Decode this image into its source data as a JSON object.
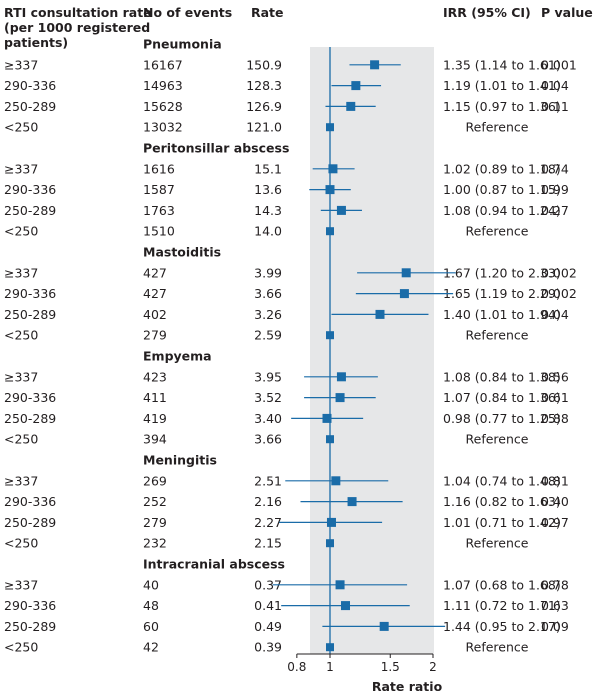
{
  "header": {
    "col_category_line1": "RTI consultation rate",
    "col_category_line2": "(per 1000 registered",
    "col_category_line3": "patients)",
    "col_events": "No of events",
    "col_rate": "Rate",
    "col_irr": "IRR (95% CI)",
    "col_pvalue": "P value"
  },
  "colors": {
    "marker": "#1a6ca8",
    "panel": "#e6e7e8",
    "text": "#231f20"
  },
  "chart_data": {
    "type": "forest",
    "xlabel": "Rate ratio",
    "x_scale": "log",
    "xlim": [
      0.8,
      2
    ],
    "xticks": [
      0.8,
      1,
      1.5,
      2
    ],
    "xtick_labels": [
      "0.8",
      "1",
      "1.5",
      "2"
    ],
    "reference_line": 1,
    "groups": [
      {
        "name": "Pneumonia",
        "rows": [
          {
            "category": "≥337",
            "events": "16167",
            "rate": "150.9",
            "irr": 1.35,
            "lo": 1.14,
            "hi": 1.61,
            "irr_text": "1.35 (1.14 to 1.61)",
            "p": "0.001"
          },
          {
            "category": "290-336",
            "events": "14963",
            "rate": "128.3",
            "irr": 1.19,
            "lo": 1.01,
            "hi": 1.41,
            "irr_text": "1.19 (1.01 to 1.41)",
            "p": "0.04"
          },
          {
            "category": "250-289",
            "events": "15628",
            "rate": "126.9",
            "irr": 1.15,
            "lo": 0.97,
            "hi": 1.36,
            "irr_text": "1.15 (0.97 to 1.36)",
            "p": "0.11"
          },
          {
            "category": "<250",
            "events": "13032",
            "rate": "121.0",
            "irr": 1,
            "lo": null,
            "hi": null,
            "irr_text": "Reference",
            "p": ""
          }
        ]
      },
      {
        "name": "Peritonsillar abscess",
        "rows": [
          {
            "category": "≥337",
            "events": "1616",
            "rate": "15.1",
            "irr": 1.02,
            "lo": 0.89,
            "hi": 1.18,
            "irr_text": "1.02 (0.89 to 1.18)",
            "p": "0.74"
          },
          {
            "category": "290-336",
            "events": "1587",
            "rate": "13.6",
            "irr": 1.0,
            "lo": 0.87,
            "hi": 1.15,
            "irr_text": "1.00 (0.87 to 1.15)",
            "p": "0.99"
          },
          {
            "category": "250-289",
            "events": "1763",
            "rate": "14.3",
            "irr": 1.08,
            "lo": 0.94,
            "hi": 1.24,
            "irr_text": "1.08 (0.94 to 1.24)",
            "p": "0.27"
          },
          {
            "category": "<250",
            "events": "1510",
            "rate": "14.0",
            "irr": 1,
            "lo": null,
            "hi": null,
            "irr_text": "Reference",
            "p": ""
          }
        ]
      },
      {
        "name": "Mastoiditis",
        "rows": [
          {
            "category": "≥337",
            "events": "427",
            "rate": "3.99",
            "irr": 1.67,
            "lo": 1.2,
            "hi": 2.33,
            "irr_text": "1.67 (1.20 to 2.33)",
            "p": "0.002"
          },
          {
            "category": "290-336",
            "events": "427",
            "rate": "3.66",
            "irr": 1.65,
            "lo": 1.19,
            "hi": 2.29,
            "irr_text": "1.65 (1.19 to 2.29)",
            "p": "0.002"
          },
          {
            "category": "250-289",
            "events": "402",
            "rate": "3.26",
            "irr": 1.4,
            "lo": 1.01,
            "hi": 1.94,
            "irr_text": "1.40 (1.01 to 1.94)",
            "p": "0.04"
          },
          {
            "category": "<250",
            "events": "279",
            "rate": "2.59",
            "irr": 1,
            "lo": null,
            "hi": null,
            "irr_text": "Reference",
            "p": ""
          }
        ]
      },
      {
        "name": "Empyema",
        "rows": [
          {
            "category": "≥337",
            "events": "423",
            "rate": "3.95",
            "irr": 1.08,
            "lo": 0.84,
            "hi": 1.38,
            "irr_text": "1.08 (0.84 to 1.38)",
            "p": "0.56"
          },
          {
            "category": "290-336",
            "events": "411",
            "rate": "3.52",
            "irr": 1.07,
            "lo": 0.84,
            "hi": 1.36,
            "irr_text": "1.07 (0.84 to 1.36)",
            "p": "0.61"
          },
          {
            "category": "250-289",
            "events": "419",
            "rate": "3.40",
            "irr": 0.98,
            "lo": 0.77,
            "hi": 1.25,
            "irr_text": "0.98 (0.77 to 1.25)",
            "p": "0.88"
          },
          {
            "category": "<250",
            "events": "394",
            "rate": "3.66",
            "irr": 1,
            "lo": null,
            "hi": null,
            "irr_text": "Reference",
            "p": ""
          }
        ]
      },
      {
        "name": "Meningitis",
        "rows": [
          {
            "category": "≥337",
            "events": "269",
            "rate": "2.51",
            "irr": 1.04,
            "lo": 0.74,
            "hi": 1.48,
            "irr_text": "1.04 (0.74 to 1.48)",
            "p": "0.81"
          },
          {
            "category": "290-336",
            "events": "252",
            "rate": "2.16",
            "irr": 1.16,
            "lo": 0.82,
            "hi": 1.63,
            "irr_text": "1.16 (0.82 to 1.63)",
            "p": "0.40"
          },
          {
            "category": "250-289",
            "events": "279",
            "rate": "2.27",
            "irr": 1.01,
            "lo": 0.71,
            "hi": 1.42,
            "irr_text": "1.01 (0.71 to 1.42)",
            "p": "0.97"
          },
          {
            "category": "<250",
            "events": "232",
            "rate": "2.15",
            "irr": 1,
            "lo": null,
            "hi": null,
            "irr_text": "Reference",
            "p": ""
          }
        ]
      },
      {
        "name": "Intracranial abscess",
        "rows": [
          {
            "category": "≥337",
            "events": "40",
            "rate": "0.37",
            "irr": 1.07,
            "lo": 0.68,
            "hi": 1.68,
            "irr_text": "1.07 (0.68 to 1.68)",
            "p": "0.78"
          },
          {
            "category": "290-336",
            "events": "48",
            "rate": "0.41",
            "irr": 1.11,
            "lo": 0.72,
            "hi": 1.71,
            "irr_text": "1.11 (0.72 to 1.71)",
            "p": "0.63"
          },
          {
            "category": "250-289",
            "events": "60",
            "rate": "0.49",
            "irr": 1.44,
            "lo": 0.95,
            "hi": 2.17,
            "irr_text": "1.44 (0.95 to 2.17)",
            "p": "0.09"
          },
          {
            "category": "<250",
            "events": "42",
            "rate": "0.39",
            "irr": 1,
            "lo": null,
            "hi": null,
            "irr_text": "Reference",
            "p": ""
          }
        ]
      }
    ]
  }
}
